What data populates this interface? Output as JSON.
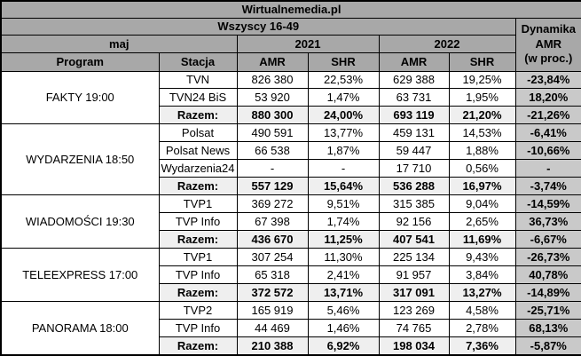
{
  "title": "Wirtualnemedia.pl",
  "header": {
    "audience": "Wszyscy 16-49",
    "period": "maj",
    "year1": "2021",
    "year2": "2022",
    "col_program": "Program",
    "col_station": "Stacja",
    "col_amr": "AMR",
    "col_shr": "SHR",
    "dynamics": [
      "Dynamika",
      "AMR",
      "(w proc.)"
    ]
  },
  "colors": {
    "header_bg": "#a8a8a8",
    "dynamics_bg": "#c9c9c9",
    "total_bg": "#efefef",
    "border": "#000000",
    "cell_bg": "#ffffff"
  },
  "groups": [
    {
      "program": "FAKTY 19:00",
      "rows": [
        {
          "station": "TVN",
          "amr_2021": "826 380",
          "shr_2021": "22,53%",
          "amr_2022": "629 388",
          "shr_2022": "19,25%",
          "dynamics": "-23,84%"
        },
        {
          "station": "TVN24 BiS",
          "amr_2021": "53 920",
          "shr_2021": "1,47%",
          "amr_2022": "63 731",
          "shr_2022": "1,95%",
          "dynamics": "18,20%"
        }
      ],
      "total": {
        "station": "Razem:",
        "amr_2021": "880 300",
        "shr_2021": "24,00%",
        "amr_2022": "693 119",
        "shr_2022": "21,20%",
        "dynamics": "-21,26%"
      }
    },
    {
      "program": "WYDARZENIA 18:50",
      "rows": [
        {
          "station": "Polsat",
          "amr_2021": "490 591",
          "shr_2021": "13,77%",
          "amr_2022": "459 131",
          "shr_2022": "14,53%",
          "dynamics": "-6,41%"
        },
        {
          "station": "Polsat News",
          "amr_2021": "66 538",
          "shr_2021": "1,87%",
          "amr_2022": "59 447",
          "shr_2022": "1,88%",
          "dynamics": "-10,66%"
        },
        {
          "station": "Wydarzenia24",
          "amr_2021": "-",
          "shr_2021": "-",
          "amr_2022": "17 710",
          "shr_2022": "0,56%",
          "dynamics": "-"
        }
      ],
      "total": {
        "station": "Razem:",
        "amr_2021": "557 129",
        "shr_2021": "15,64%",
        "amr_2022": "536 288",
        "shr_2022": "16,97%",
        "dynamics": "-3,74%"
      }
    },
    {
      "program": "WIADOMOŚCI 19:30",
      "rows": [
        {
          "station": "TVP1",
          "amr_2021": "369 272",
          "shr_2021": "9,51%",
          "amr_2022": "315 385",
          "shr_2022": "9,04%",
          "dynamics": "-14,59%"
        },
        {
          "station": "TVP Info",
          "amr_2021": "67 398",
          "shr_2021": "1,74%",
          "amr_2022": "92 156",
          "shr_2022": "2,65%",
          "dynamics": "36,73%"
        }
      ],
      "total": {
        "station": "Razem:",
        "amr_2021": "436 670",
        "shr_2021": "11,25%",
        "amr_2022": "407 541",
        "shr_2022": "11,69%",
        "dynamics": "-6,67%"
      }
    },
    {
      "program": "TELEEXPRESS 17:00",
      "rows": [
        {
          "station": "TVP1",
          "amr_2021": "307 254",
          "shr_2021": "11,30%",
          "amr_2022": "225 134",
          "shr_2022": "9,43%",
          "dynamics": "-26,73%"
        },
        {
          "station": "TVP Info",
          "amr_2021": "65 318",
          "shr_2021": "2,41%",
          "amr_2022": "91 957",
          "shr_2022": "3,84%",
          "dynamics": "40,78%"
        }
      ],
      "total": {
        "station": "Razem:",
        "amr_2021": "372 572",
        "shr_2021": "13,71%",
        "amr_2022": "317 091",
        "shr_2022": "13,27%",
        "dynamics": "-14,89%"
      }
    },
    {
      "program": "PANORAMA 18:00",
      "rows": [
        {
          "station": "TVP2",
          "amr_2021": "165 919",
          "shr_2021": "5,46%",
          "amr_2022": "123 269",
          "shr_2022": "4,58%",
          "dynamics": "-25,71%"
        },
        {
          "station": "TVP Info",
          "amr_2021": "44 469",
          "shr_2021": "1,46%",
          "amr_2022": "74 765",
          "shr_2022": "2,78%",
          "dynamics": "68,13%"
        }
      ],
      "total": {
        "station": "Razem:",
        "amr_2021": "210 388",
        "shr_2021": "6,92%",
        "amr_2022": "198 034",
        "shr_2022": "7,36%",
        "dynamics": "-5,87%"
      }
    }
  ],
  "chart_data": {
    "type": "table",
    "title": "Wirtualnemedia.pl",
    "subtitle": "Wszyscy 16-49, maj 2021 vs maj 2022",
    "columns": [
      "Program",
      "Stacja",
      "AMR 2021",
      "SHR 2021",
      "AMR 2022",
      "SHR 2022",
      "Dynamika AMR (w proc.)"
    ],
    "rows": [
      [
        "FAKTY 19:00",
        "TVN",
        "826 380",
        "22,53%",
        "629 388",
        "19,25%",
        "-23,84%"
      ],
      [
        "FAKTY 19:00",
        "TVN24 BiS",
        "53 920",
        "1,47%",
        "63 731",
        "1,95%",
        "18,20%"
      ],
      [
        "FAKTY 19:00",
        "Razem:",
        "880 300",
        "24,00%",
        "693 119",
        "21,20%",
        "-21,26%"
      ],
      [
        "WYDARZENIA 18:50",
        "Polsat",
        "490 591",
        "13,77%",
        "459 131",
        "14,53%",
        "-6,41%"
      ],
      [
        "WYDARZENIA 18:50",
        "Polsat News",
        "66 538",
        "1,87%",
        "59 447",
        "1,88%",
        "-10,66%"
      ],
      [
        "WYDARZENIA 18:50",
        "Wydarzenia24",
        "-",
        "-",
        "17 710",
        "0,56%",
        "-"
      ],
      [
        "WYDARZENIA 18:50",
        "Razem:",
        "557 129",
        "15,64%",
        "536 288",
        "16,97%",
        "-3,74%"
      ],
      [
        "WIADOMOŚCI 19:30",
        "TVP1",
        "369 272",
        "9,51%",
        "315 385",
        "9,04%",
        "-14,59%"
      ],
      [
        "WIADOMOŚCI 19:30",
        "TVP Info",
        "67 398",
        "1,74%",
        "92 156",
        "2,65%",
        "36,73%"
      ],
      [
        "WIADOMOŚCI 19:30",
        "Razem:",
        "436 670",
        "11,25%",
        "407 541",
        "11,69%",
        "-6,67%"
      ],
      [
        "TELEEXPRESS 17:00",
        "TVP1",
        "307 254",
        "11,30%",
        "225 134",
        "9,43%",
        "-26,73%"
      ],
      [
        "TELEEXPRESS 17:00",
        "TVP Info",
        "65 318",
        "2,41%",
        "91 957",
        "3,84%",
        "40,78%"
      ],
      [
        "TELEEXPRESS 17:00",
        "Razem:",
        "372 572",
        "13,71%",
        "317 091",
        "13,27%",
        "-14,89%"
      ],
      [
        "PANORAMA 18:00",
        "TVP2",
        "165 919",
        "5,46%",
        "123 269",
        "4,58%",
        "-25,71%"
      ],
      [
        "PANORAMA 18:00",
        "TVP Info",
        "44 469",
        "1,46%",
        "74 765",
        "2,78%",
        "68,13%"
      ],
      [
        "PANORAMA 18:00",
        "Razem:",
        "210 388",
        "6,92%",
        "198 034",
        "7,36%",
        "-5,87%"
      ]
    ]
  }
}
